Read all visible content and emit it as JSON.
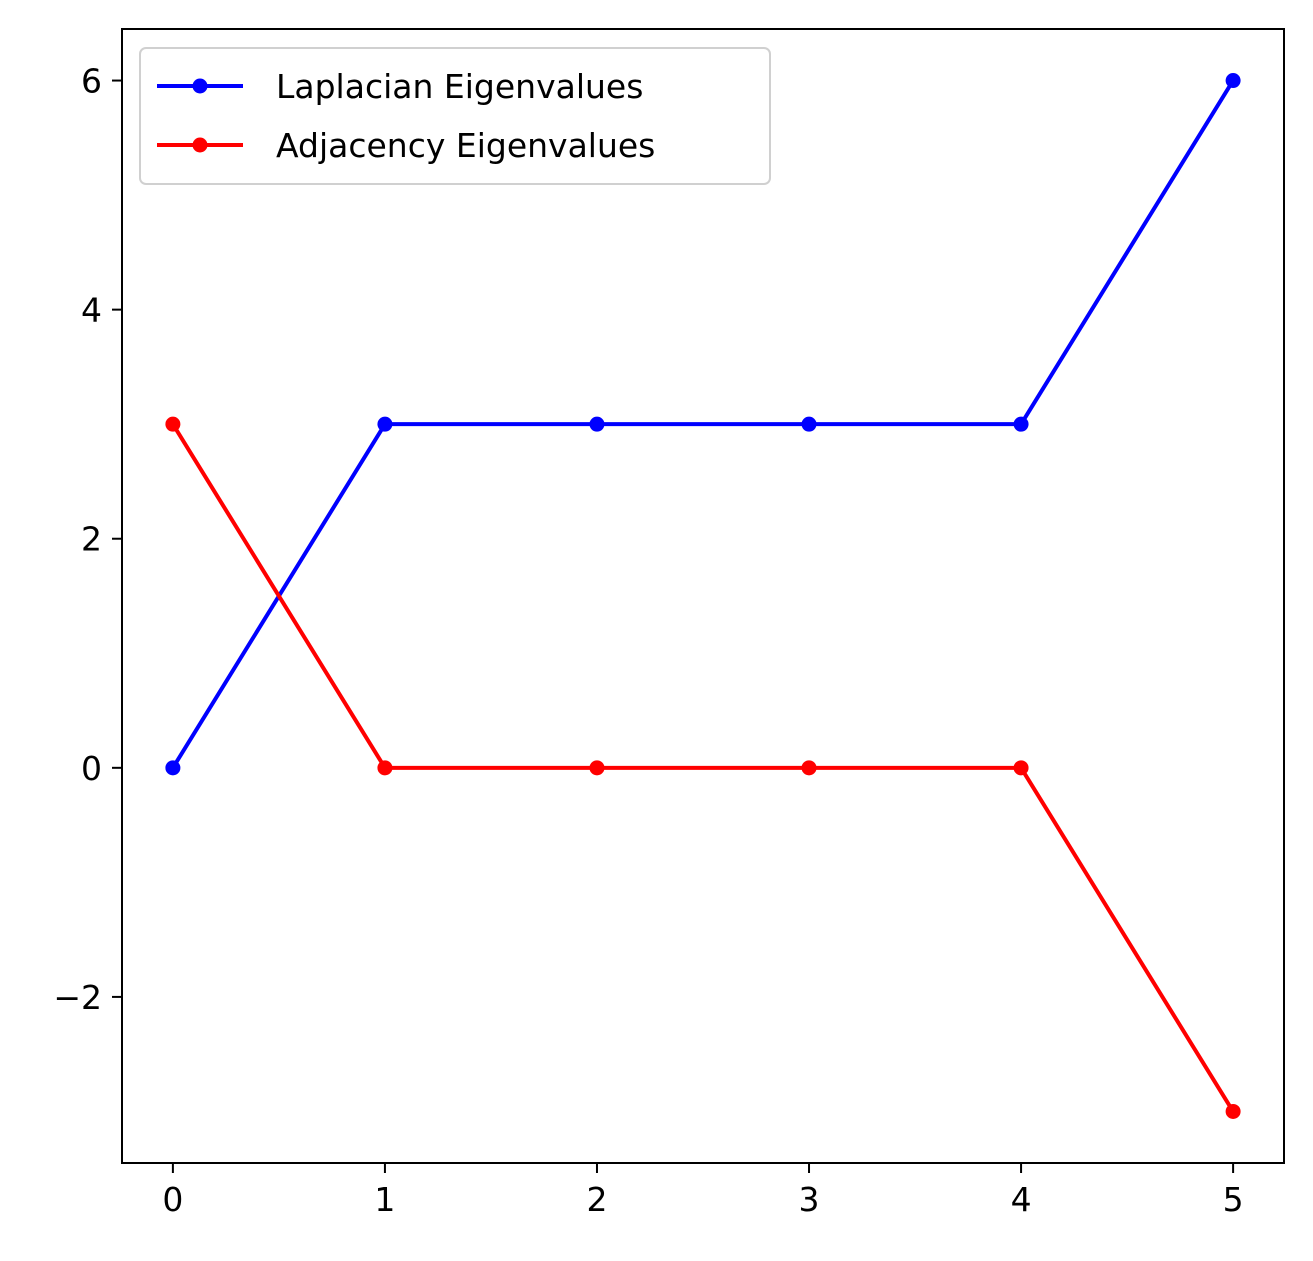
{
  "chart_data": {
    "type": "line",
    "title": "",
    "xlabel": "",
    "ylabel": "",
    "x": [
      0,
      1,
      2,
      3,
      4,
      5
    ],
    "xlim": [
      -0.24,
      5.24
    ],
    "ylim": [
      -3.45,
      6.45
    ],
    "xticks": [
      0,
      1,
      2,
      3,
      4,
      5
    ],
    "xtick_labels": [
      "0",
      "1",
      "2",
      "3",
      "4",
      "5"
    ],
    "yticks": [
      -2,
      0,
      2,
      4,
      6
    ],
    "ytick_labels": [
      "−2",
      "0",
      "2",
      "4",
      "6"
    ],
    "grid": false,
    "legend_position": "top-left",
    "series": [
      {
        "name": "Laplacian Eigenvalues",
        "color": "#0000ff",
        "marker": "circle",
        "values": [
          0,
          3,
          3,
          3,
          3,
          6
        ]
      },
      {
        "name": "Adjacency Eigenvalues",
        "color": "#ff0000",
        "marker": "circle",
        "values": [
          3,
          0,
          0,
          0,
          0,
          -3
        ]
      }
    ]
  }
}
